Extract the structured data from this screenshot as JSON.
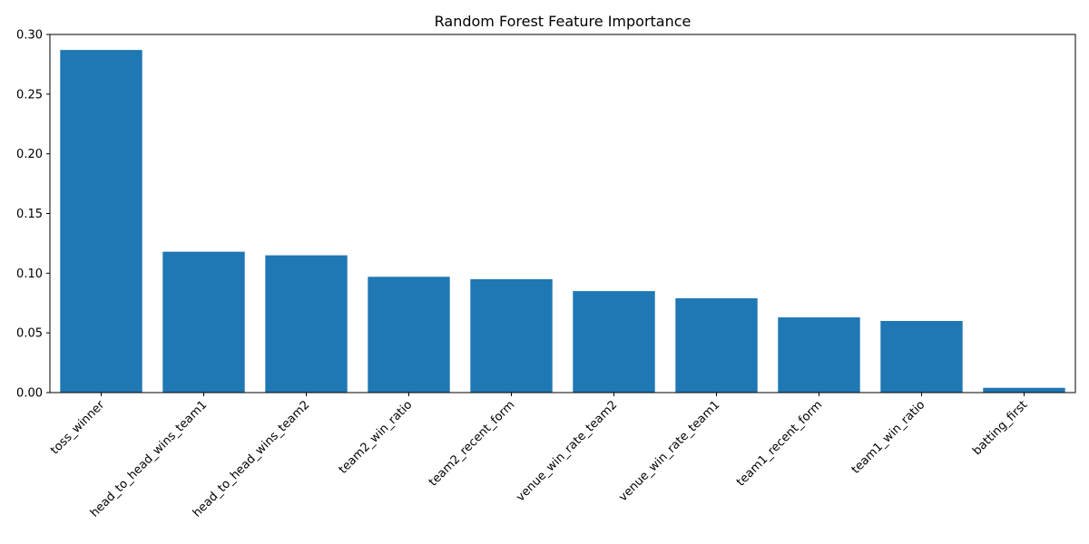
{
  "chart_data": {
    "type": "bar",
    "title": "Random Forest Feature Importance",
    "xlabel": "",
    "ylabel": "",
    "categories": [
      "toss_winner",
      "head_to_head_wins_team1",
      "head_to_head_wins_team2",
      "team2_win_ratio",
      "team2_recent_form",
      "venue_win_rate_team2",
      "venue_win_rate_team1",
      "team1_recent_form",
      "team1_win_ratio",
      "batting_first"
    ],
    "values": [
      0.287,
      0.118,
      0.115,
      0.097,
      0.095,
      0.085,
      0.079,
      0.063,
      0.06,
      0.004
    ],
    "ylim": [
      0,
      0.3
    ],
    "yticks": [
      0.0,
      0.05,
      0.1,
      0.15,
      0.2,
      0.25,
      0.3
    ],
    "ytick_labels": [
      "0.00",
      "0.05",
      "0.10",
      "0.15",
      "0.20",
      "0.25",
      "0.30"
    ],
    "bar_color": "#1f77b4",
    "grid": false,
    "legend": "none"
  }
}
